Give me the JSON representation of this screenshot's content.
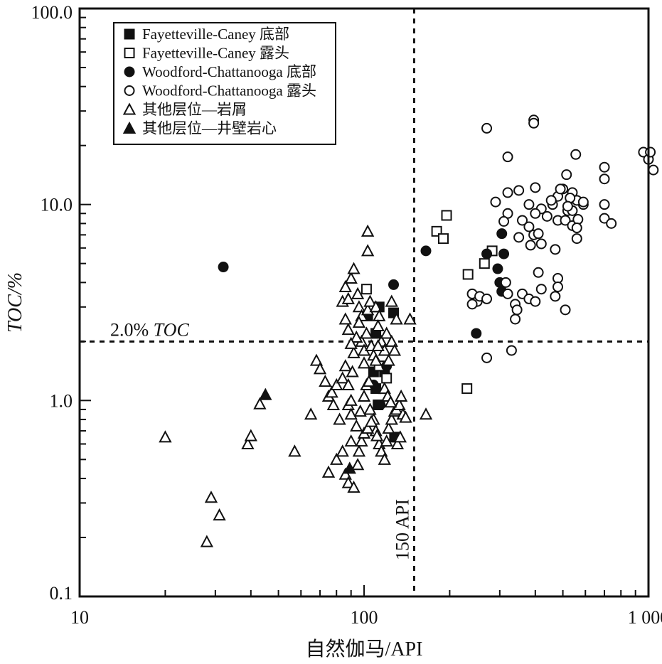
{
  "chart_data": {
    "type": "scatter",
    "title": "",
    "xlabel": "自然伽马/API",
    "ylabel": "TOC/%",
    "xscale": "log",
    "yscale": "log",
    "xlim": [
      10,
      1000
    ],
    "ylim": [
      0.1,
      100
    ],
    "grid": false,
    "legend_position": "top-left",
    "x_ticks": [
      {
        "value": 10,
        "label": "10"
      },
      {
        "value": 100,
        "label": "100"
      },
      {
        "value": 1000,
        "label": "1 000"
      }
    ],
    "y_ticks": [
      {
        "value": 0.1,
        "label": "0.1"
      },
      {
        "value": 1,
        "label": "1.0"
      },
      {
        "value": 10,
        "label": "10.0"
      },
      {
        "value": 100,
        "label": "100.0"
      }
    ],
    "reference_lines": [
      {
        "axis": "y",
        "value": 2.0,
        "label": "2.0% TOC",
        "label_prefix": "2.0% ",
        "label_italic": "TOC"
      },
      {
        "axis": "x",
        "value": 150,
        "label": "150 API"
      }
    ],
    "series": [
      {
        "name": "Fayetteville-Caney 底部",
        "marker": "square-filled",
        "points": [
          [
            103,
            2.7
          ],
          [
            113,
            3.0
          ],
          [
            127,
            2.8
          ],
          [
            110,
            2.2
          ],
          [
            108,
            1.4
          ],
          [
            118,
            1.4
          ],
          [
            115,
            1.5
          ],
          [
            110,
            1.15
          ],
          [
            112,
            0.95
          ],
          [
            128,
            0.65
          ]
        ]
      },
      {
        "name": "Fayetteville-Caney 露头",
        "marker": "square-open",
        "points": [
          [
            102,
            3.7
          ],
          [
            180,
            7.3
          ],
          [
            190,
            6.7
          ],
          [
            195,
            8.8
          ],
          [
            232,
            4.4
          ],
          [
            265,
            5.0
          ],
          [
            282,
            5.8
          ],
          [
            230,
            1.15
          ],
          [
            120,
            1.3
          ],
          [
            113,
            1.5
          ]
        ]
      },
      {
        "name": "Woodford-Chattanooga 底部",
        "marker": "circle-filled",
        "points": [
          [
            32,
            4.8
          ],
          [
            127,
            3.9
          ],
          [
            165,
            5.8
          ],
          [
            108,
            1.2
          ],
          [
            114,
            0.95
          ],
          [
            120,
            1.5
          ],
          [
            248,
            2.2
          ],
          [
            270,
            5.6
          ],
          [
            295,
            4.7
          ],
          [
            300,
            4.0
          ],
          [
            305,
            3.6
          ],
          [
            305,
            7.1
          ],
          [
            310,
            5.6
          ]
        ]
      },
      {
        "name": "Woodford-Chattanooga 露头",
        "marker": "circle-open",
        "points": [
          [
            270,
            24.5
          ],
          [
            395,
            27
          ],
          [
            395,
            26
          ],
          [
            320,
            17.5
          ],
          [
            555,
            18
          ],
          [
            700,
            15.5
          ],
          [
            700,
            13.5
          ],
          [
            960,
            18.5
          ],
          [
            1000,
            17
          ],
          [
            1015,
            18.5
          ],
          [
            1040,
            15
          ],
          [
            590,
            10
          ],
          [
            480,
            11
          ],
          [
            500,
            12
          ],
          [
            540,
            11.5
          ],
          [
            560,
            10.5
          ],
          [
            590,
            10.3
          ],
          [
            520,
            9.3
          ],
          [
            460,
            10
          ],
          [
            420,
            9.5
          ],
          [
            400,
            9
          ],
          [
            440,
            8.7
          ],
          [
            480,
            8.3
          ],
          [
            510,
            8.3
          ],
          [
            540,
            7.8
          ],
          [
            565,
            8.4
          ],
          [
            700,
            10
          ],
          [
            700,
            8.5
          ],
          [
            740,
            8
          ],
          [
            400,
            12.2
          ],
          [
            350,
            11.8
          ],
          [
            320,
            11.5
          ],
          [
            290,
            10.3
          ],
          [
            320,
            9
          ],
          [
            310,
            8.2
          ],
          [
            360,
            8.3
          ],
          [
            380,
            7.7
          ],
          [
            395,
            7
          ],
          [
            410,
            7.1
          ],
          [
            350,
            6.8
          ],
          [
            385,
            6.2
          ],
          [
            420,
            6.3
          ],
          [
            470,
            5.9
          ],
          [
            560,
            6.7
          ],
          [
            560,
            7.6
          ],
          [
            410,
            4.5
          ],
          [
            480,
            4.2
          ],
          [
            480,
            3.8
          ],
          [
            470,
            3.4
          ],
          [
            510,
            2.9
          ],
          [
            340,
            3.1
          ],
          [
            360,
            3.5
          ],
          [
            380,
            3.3
          ],
          [
            400,
            3.2
          ],
          [
            420,
            3.7
          ],
          [
            320,
            3.5
          ],
          [
            315,
            4.0
          ],
          [
            240,
            3.5
          ],
          [
            250,
            3.2
          ],
          [
            240,
            3.1
          ],
          [
            255,
            3.4
          ],
          [
            270,
            3.3
          ],
          [
            345,
            2.9
          ],
          [
            340,
            2.6
          ],
          [
            330,
            1.8
          ],
          [
            270,
            1.65
          ],
          [
            540,
            9.3
          ],
          [
            530,
            10.8
          ],
          [
            520,
            9.8
          ],
          [
            490,
            12
          ],
          [
            455,
            10.5
          ],
          [
            515,
            14.2
          ],
          [
            380,
            10
          ]
        ]
      },
      {
        "name": "其他层位—岩屑",
        "marker": "triangle-open",
        "points": [
          [
            20,
            0.65
          ],
          [
            28,
            0.19
          ],
          [
            29,
            0.32
          ],
          [
            31,
            0.26
          ],
          [
            39,
            0.6
          ],
          [
            40,
            0.66
          ],
          [
            43,
            0.96
          ],
          [
            57,
            0.55
          ],
          [
            65,
            0.85
          ],
          [
            68,
            1.6
          ],
          [
            70,
            1.45
          ],
          [
            73,
            1.25
          ],
          [
            75,
            1.05
          ],
          [
            77,
            1.1
          ],
          [
            78,
            0.95
          ],
          [
            80,
            1.2
          ],
          [
            82,
            0.8
          ],
          [
            84,
            1.3
          ],
          [
            86,
            1.5
          ],
          [
            88,
            1.2
          ],
          [
            88,
            0.95
          ],
          [
            90,
            1.0
          ],
          [
            90,
            0.85
          ],
          [
            91,
            1.4
          ],
          [
            92,
            1.75
          ],
          [
            88,
            2.3
          ],
          [
            86,
            2.6
          ],
          [
            84,
            3.2
          ],
          [
            86,
            3.8
          ],
          [
            88,
            3.3
          ],
          [
            90,
            4.2
          ],
          [
            92,
            4.7
          ],
          [
            95,
            3.5
          ],
          [
            96,
            3.0
          ],
          [
            98,
            2.7
          ],
          [
            98,
            2.0
          ],
          [
            100,
            1.8
          ],
          [
            102,
            2.2
          ],
          [
            100,
            1.55
          ],
          [
            103,
            2.9
          ],
          [
            105,
            3.2
          ],
          [
            110,
            3.0
          ],
          [
            113,
            2.7
          ],
          [
            112,
            2.4
          ],
          [
            115,
            2.0
          ],
          [
            118,
            1.8
          ],
          [
            120,
            2.2
          ],
          [
            122,
            1.6
          ],
          [
            125,
            2.0
          ],
          [
            125,
            3.2
          ],
          [
            130,
            2.6
          ],
          [
            128,
            1.8
          ],
          [
            102,
            1.2
          ],
          [
            105,
            0.9
          ],
          [
            108,
            0.8
          ],
          [
            110,
            0.7
          ],
          [
            113,
            0.6
          ],
          [
            115,
            0.55
          ],
          [
            118,
            0.5
          ],
          [
            120,
            0.62
          ],
          [
            122,
            0.72
          ],
          [
            125,
            0.8
          ],
          [
            128,
            0.88
          ],
          [
            130,
            0.9
          ],
          [
            133,
            0.95
          ],
          [
            135,
            1.05
          ],
          [
            137,
            0.85
          ],
          [
            140,
            0.82
          ],
          [
            145,
            2.6
          ],
          [
            165,
            0.85
          ],
          [
            75,
            0.43
          ],
          [
            80,
            0.5
          ],
          [
            84,
            0.55
          ],
          [
            86,
            0.42
          ],
          [
            88,
            0.38
          ],
          [
            92,
            0.36
          ],
          [
            95,
            0.47
          ],
          [
            96,
            0.55
          ],
          [
            98,
            0.62
          ],
          [
            100,
            0.68
          ],
          [
            103,
            0.72
          ],
          [
            106,
            0.78
          ],
          [
            90,
            0.62
          ],
          [
            94,
            0.74
          ],
          [
            97,
            0.88
          ],
          [
            100,
            1.05
          ],
          [
            104,
            1.25
          ],
          [
            106,
            1.9
          ],
          [
            108,
            1.7
          ],
          [
            110,
            1.6
          ],
          [
            112,
            1.9
          ],
          [
            103,
            5.8
          ],
          [
            103,
            7.3
          ],
          [
            96,
            2.5
          ],
          [
            94,
            2.1
          ],
          [
            90,
            1.95
          ],
          [
            118,
            1.15
          ],
          [
            121,
            1.05
          ],
          [
            124,
            0.98
          ],
          [
            131,
            0.6
          ],
          [
            134,
            0.65
          ],
          [
            111,
            0.66
          ]
        ]
      },
      {
        "name": "其他层位—井壁岩心",
        "marker": "triangle-filled",
        "points": [
          [
            45,
            1.07
          ],
          [
            89,
            0.45
          ]
        ]
      }
    ]
  }
}
